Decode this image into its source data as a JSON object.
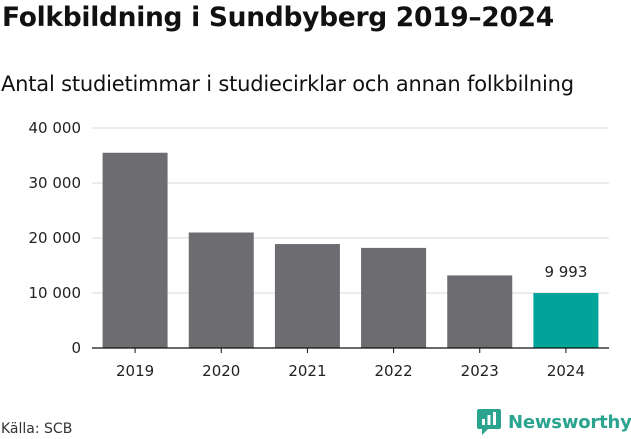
{
  "title": "Folkbildning i Sundbyberg 2019–2024",
  "subtitle": "Antal studietimmar i studiecirklar och annan folkbilning",
  "source": "Källa: SCB",
  "brand": {
    "name": "Newsworthy",
    "icon": "newsworthy-logo-icon"
  },
  "colors": {
    "bar": "#6d6c70",
    "highlight": "#00a499",
    "grid": "#d9d9d9",
    "axis": "#111111"
  },
  "chart_data": {
    "type": "bar",
    "title": "Folkbildning i Sundbyberg 2019–2024",
    "subtitle": "Antal studietimmar i studiecirklar och annan folkbilning",
    "xlabel": "",
    "ylabel": "",
    "categories": [
      "2019",
      "2020",
      "2021",
      "2022",
      "2023",
      "2024"
    ],
    "values": [
      35500,
      21000,
      18900,
      18200,
      13200,
      9993
    ],
    "highlight_index": 5,
    "data_labels": [
      {
        "index": 5,
        "text": "9 993"
      }
    ],
    "ylim": [
      0,
      40000
    ],
    "yticks": [
      0,
      10000,
      20000,
      30000,
      40000
    ],
    "ytick_labels": [
      "0",
      "10 000",
      "20 000",
      "30 000",
      "40 000"
    ],
    "grid": true,
    "legend": "none"
  }
}
